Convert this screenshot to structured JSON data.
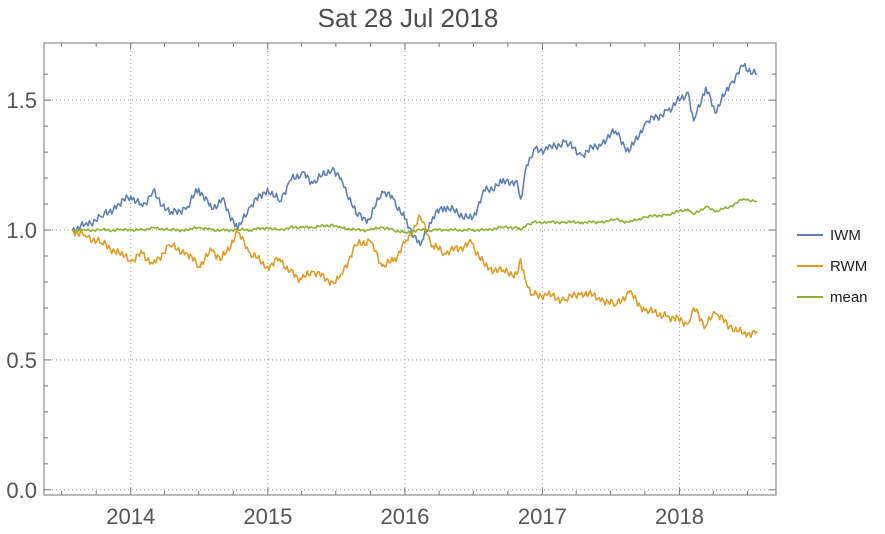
{
  "chart_data": {
    "type": "line",
    "title": "Sat 28 Jul 2018",
    "x_axis": {
      "kind": "date",
      "range": [
        "2013-05-15",
        "2018-09-15"
      ],
      "ticks": [
        {
          "value": "2014-01-01",
          "label": "2014"
        },
        {
          "value": "2015-01-01",
          "label": "2015"
        },
        {
          "value": "2016-01-01",
          "label": "2016"
        },
        {
          "value": "2017-01-01",
          "label": "2017"
        },
        {
          "value": "2018-01-01",
          "label": "2018"
        }
      ]
    },
    "y_axis": {
      "range": [
        -0.02,
        1.72
      ],
      "ticks": [
        {
          "value": 0.0,
          "label": "0.0"
        },
        {
          "value": 0.5,
          "label": "0.5"
        },
        {
          "value": 1.0,
          "label": "1.0"
        },
        {
          "value": 1.5,
          "label": "1.5"
        }
      ]
    },
    "grid": true,
    "legend": "right",
    "series": [
      {
        "name": "IWM",
        "color": "#5e81b5",
        "points": [
          [
            "2013-07-29",
            1.0
          ],
          [
            "2013-09-01",
            1.02
          ],
          [
            "2013-10-15",
            1.05
          ],
          [
            "2013-12-01",
            1.1
          ],
          [
            "2014-01-01",
            1.13
          ],
          [
            "2014-02-01",
            1.09
          ],
          [
            "2014-03-01",
            1.15
          ],
          [
            "2014-04-15",
            1.06
          ],
          [
            "2014-06-01",
            1.09
          ],
          [
            "2014-07-01",
            1.16
          ],
          [
            "2014-08-05",
            1.08
          ],
          [
            "2014-09-01",
            1.12
          ],
          [
            "2014-10-13",
            1.0
          ],
          [
            "2014-11-15",
            1.09
          ],
          [
            "2014-12-31",
            1.16
          ],
          [
            "2015-02-01",
            1.11
          ],
          [
            "2015-03-01",
            1.19
          ],
          [
            "2015-04-01",
            1.22
          ],
          [
            "2015-05-01",
            1.18
          ],
          [
            "2015-06-23",
            1.24
          ],
          [
            "2015-07-15",
            1.2
          ],
          [
            "2015-08-24",
            1.06
          ],
          [
            "2015-09-29",
            1.04
          ],
          [
            "2015-11-01",
            1.15
          ],
          [
            "2015-12-01",
            1.12
          ],
          [
            "2016-01-01",
            1.04
          ],
          [
            "2016-02-11",
            0.94
          ],
          [
            "2016-03-15",
            1.05
          ],
          [
            "2016-04-15",
            1.09
          ],
          [
            "2016-06-27",
            1.04
          ],
          [
            "2016-08-01",
            1.15
          ],
          [
            "2016-09-15",
            1.18
          ],
          [
            "2016-10-25",
            1.19
          ],
          [
            "2016-11-04",
            1.12
          ],
          [
            "2016-11-20",
            1.25
          ],
          [
            "2016-12-09",
            1.31
          ],
          [
            "2017-01-15",
            1.31
          ],
          [
            "2017-03-01",
            1.34
          ],
          [
            "2017-04-15",
            1.29
          ],
          [
            "2017-06-01",
            1.33
          ],
          [
            "2017-07-15",
            1.38
          ],
          [
            "2017-08-20",
            1.3
          ],
          [
            "2017-10-01",
            1.41
          ],
          [
            "2017-12-01",
            1.46
          ],
          [
            "2018-01-24",
            1.53
          ],
          [
            "2018-02-08",
            1.42
          ],
          [
            "2018-03-12",
            1.55
          ],
          [
            "2018-04-06",
            1.45
          ],
          [
            "2018-05-15",
            1.56
          ],
          [
            "2018-06-20",
            1.63
          ],
          [
            "2018-07-27",
            1.6
          ]
        ]
      },
      {
        "name": "RWM",
        "color": "#e19c24",
        "points": [
          [
            "2013-07-29",
            1.0
          ],
          [
            "2013-09-01",
            0.98
          ],
          [
            "2013-10-15",
            0.95
          ],
          [
            "2013-12-01",
            0.91
          ],
          [
            "2014-01-01",
            0.88
          ],
          [
            "2014-02-01",
            0.91
          ],
          [
            "2014-03-01",
            0.87
          ],
          [
            "2014-04-15",
            0.94
          ],
          [
            "2014-06-01",
            0.91
          ],
          [
            "2014-07-01",
            0.86
          ],
          [
            "2014-08-05",
            0.92
          ],
          [
            "2014-09-01",
            0.89
          ],
          [
            "2014-10-13",
            0.99
          ],
          [
            "2014-11-15",
            0.91
          ],
          [
            "2014-12-31",
            0.86
          ],
          [
            "2015-02-01",
            0.89
          ],
          [
            "2015-03-01",
            0.84
          ],
          [
            "2015-04-01",
            0.81
          ],
          [
            "2015-05-01",
            0.84
          ],
          [
            "2015-06-23",
            0.8
          ],
          [
            "2015-07-15",
            0.83
          ],
          [
            "2015-08-24",
            0.94
          ],
          [
            "2015-09-29",
            0.96
          ],
          [
            "2015-11-01",
            0.86
          ],
          [
            "2015-12-01",
            0.88
          ],
          [
            "2016-01-01",
            0.95
          ],
          [
            "2016-02-11",
            1.05
          ],
          [
            "2016-03-15",
            0.94
          ],
          [
            "2016-04-15",
            0.91
          ],
          [
            "2016-06-27",
            0.95
          ],
          [
            "2016-08-01",
            0.86
          ],
          [
            "2016-09-15",
            0.84
          ],
          [
            "2016-10-25",
            0.83
          ],
          [
            "2016-11-04",
            0.89
          ],
          [
            "2016-11-20",
            0.79
          ],
          [
            "2016-12-09",
            0.75
          ],
          [
            "2017-01-15",
            0.75
          ],
          [
            "2017-03-01",
            0.73
          ],
          [
            "2017-04-15",
            0.76
          ],
          [
            "2017-06-01",
            0.74
          ],
          [
            "2017-07-15",
            0.71
          ],
          [
            "2017-08-20",
            0.76
          ],
          [
            "2017-10-01",
            0.69
          ],
          [
            "2017-12-01",
            0.67
          ],
          [
            "2018-01-24",
            0.64
          ],
          [
            "2018-02-08",
            0.7
          ],
          [
            "2018-03-12",
            0.63
          ],
          [
            "2018-04-06",
            0.68
          ],
          [
            "2018-05-15",
            0.63
          ],
          [
            "2018-06-20",
            0.6
          ],
          [
            "2018-07-27",
            0.61
          ]
        ]
      },
      {
        "name": "mean",
        "color": "#8fb131",
        "points": [
          [
            "2013-07-29",
            1.0
          ],
          [
            "2013-09-01",
            1.0
          ],
          [
            "2013-10-15",
            1.0
          ],
          [
            "2013-12-01",
            1.0
          ],
          [
            "2014-01-01",
            1.0
          ],
          [
            "2014-02-01",
            1.0
          ],
          [
            "2014-03-01",
            1.01
          ],
          [
            "2014-04-15",
            1.0
          ],
          [
            "2014-06-01",
            1.0
          ],
          [
            "2014-07-01",
            1.01
          ],
          [
            "2014-08-05",
            1.0
          ],
          [
            "2014-09-01",
            1.0
          ],
          [
            "2014-10-13",
            1.0
          ],
          [
            "2014-11-15",
            1.0
          ],
          [
            "2014-12-31",
            1.01
          ],
          [
            "2015-02-01",
            1.0
          ],
          [
            "2015-03-01",
            1.01
          ],
          [
            "2015-04-01",
            1.01
          ],
          [
            "2015-05-01",
            1.01
          ],
          [
            "2015-06-23",
            1.02
          ],
          [
            "2015-07-15",
            1.01
          ],
          [
            "2015-08-24",
            1.0
          ],
          [
            "2015-09-29",
            1.0
          ],
          [
            "2015-11-01",
            1.01
          ],
          [
            "2015-12-01",
            1.0
          ],
          [
            "2016-01-01",
            0.99
          ],
          [
            "2016-02-11",
            1.0
          ],
          [
            "2016-03-15",
            1.0
          ],
          [
            "2016-04-15",
            1.0
          ],
          [
            "2016-06-27",
            1.0
          ],
          [
            "2016-08-01",
            1.0
          ],
          [
            "2016-09-15",
            1.01
          ],
          [
            "2016-10-25",
            1.01
          ],
          [
            "2016-11-04",
            1.0
          ],
          [
            "2016-11-20",
            1.02
          ],
          [
            "2016-12-09",
            1.03
          ],
          [
            "2017-01-15",
            1.03
          ],
          [
            "2017-03-01",
            1.03
          ],
          [
            "2017-04-15",
            1.03
          ],
          [
            "2017-06-01",
            1.03
          ],
          [
            "2017-07-15",
            1.04
          ],
          [
            "2017-08-20",
            1.03
          ],
          [
            "2017-10-01",
            1.05
          ],
          [
            "2017-12-01",
            1.06
          ],
          [
            "2018-01-24",
            1.08
          ],
          [
            "2018-02-08",
            1.06
          ],
          [
            "2018-03-12",
            1.09
          ],
          [
            "2018-04-06",
            1.07
          ],
          [
            "2018-05-15",
            1.09
          ],
          [
            "2018-06-20",
            1.12
          ],
          [
            "2018-07-27",
            1.11
          ]
        ]
      }
    ]
  }
}
